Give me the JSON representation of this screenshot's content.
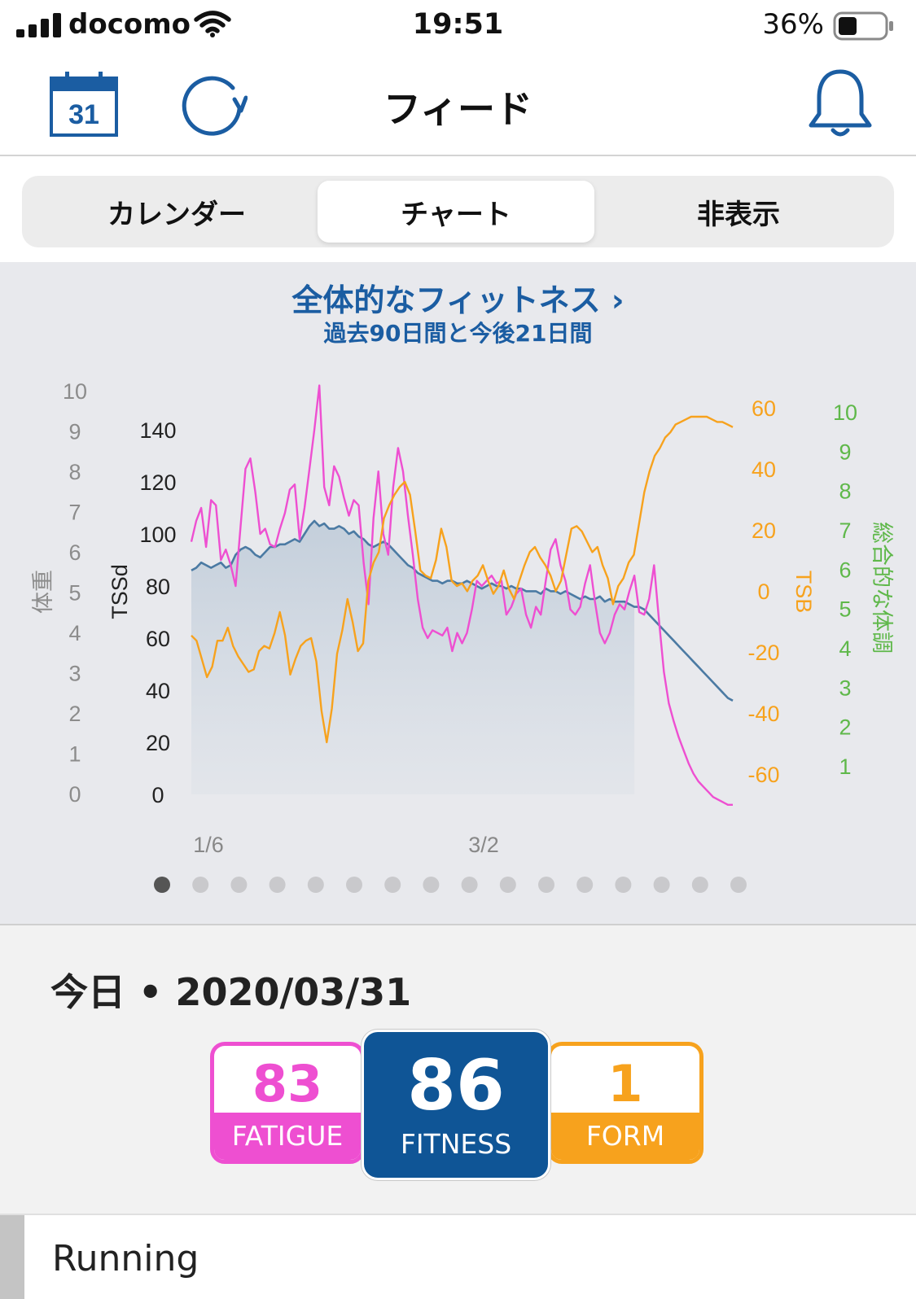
{
  "status_bar": {
    "carrier": "docomo",
    "time": "19:51",
    "battery": "36%"
  },
  "nav": {
    "calendar_day": "31",
    "title": "フィード"
  },
  "tabs": [
    {
      "label": "カレンダー"
    },
    {
      "label": "チャート"
    },
    {
      "label": "非表示"
    }
  ],
  "chart": {
    "title": "全体的なフィットネス ›",
    "subtitle": "過去90日間と今後21日間"
  },
  "chart_data": {
    "type": "line",
    "x_tick_labels": [
      "1/6",
      "3/2"
    ],
    "axes": {
      "weight": {
        "label": "体重",
        "ticks": [
          0,
          1,
          2,
          3,
          4,
          5,
          6,
          7,
          8,
          9,
          10
        ],
        "color": "#8c8c8c"
      },
      "tss": {
        "label": "TSSd",
        "ticks": [
          0,
          20,
          40,
          60,
          80,
          100,
          120,
          140
        ],
        "color": "#222222"
      },
      "tsb": {
        "label": "TSB",
        "ticks": [
          -60,
          -40,
          -20,
          0,
          20,
          40,
          60
        ],
        "color": "#f7a21d"
      },
      "overall": {
        "label": "総合的な体調",
        "ticks": [
          1,
          2,
          3,
          4,
          5,
          6,
          7,
          8,
          9,
          10
        ],
        "color": "#5fb84a"
      }
    },
    "series": [
      {
        "color": "#4b7aa3",
        "axis": "tss",
        "values": [
          86,
          87,
          89,
          88,
          87,
          88,
          89,
          87,
          88,
          92,
          94,
          95,
          94,
          92,
          91,
          93,
          95,
          95,
          96,
          96,
          97,
          98,
          97,
          100,
          103,
          105,
          103,
          104,
          102,
          102,
          103,
          102,
          100,
          101,
          99,
          98,
          96,
          95,
          96,
          97,
          96,
          94,
          92,
          90,
          88,
          87,
          85,
          84,
          83,
          82,
          82,
          81,
          82,
          82,
          81,
          81,
          82,
          81,
          80,
          79,
          80,
          81,
          80,
          80,
          79,
          80,
          79,
          79,
          78,
          78,
          78,
          77,
          79,
          78,
          78,
          77,
          78,
          77,
          76,
          75,
          76,
          75,
          75,
          76,
          74,
          75,
          74,
          74,
          74,
          73,
          72,
          72,
          71,
          69,
          67,
          65,
          63,
          61,
          59,
          57,
          55,
          53,
          51,
          49,
          47,
          45,
          43,
          41,
          39,
          37,
          36
        ]
      },
      {
        "color": "#ee4fd1",
        "axis": "tss",
        "values": [
          97,
          105,
          110,
          95,
          113,
          111,
          90,
          94,
          88,
          80,
          103,
          125,
          129,
          116,
          100,
          102,
          96,
          95,
          102,
          108,
          117,
          119,
          98,
          110,
          125,
          140,
          157,
          118,
          111,
          126,
          122,
          114,
          107,
          113,
          111,
          89,
          73,
          106,
          124,
          100,
          92,
          118,
          133,
          124,
          107,
          92,
          75,
          64,
          60,
          63,
          62,
          61,
          64,
          55,
          62,
          58,
          62,
          71,
          82,
          80,
          82,
          84,
          81,
          82,
          69,
          72,
          77,
          79,
          69,
          64,
          72,
          69,
          82,
          94,
          98,
          88,
          82,
          71,
          69,
          72,
          81,
          88,
          74,
          62,
          58,
          62,
          69,
          73,
          71,
          78,
          84,
          70,
          69,
          75,
          88,
          67,
          47,
          35,
          28,
          22,
          17,
          12,
          8,
          5,
          3,
          1,
          -1,
          -2,
          -3,
          -4,
          -4
        ]
      },
      {
        "color": "#f7a21d",
        "axis": "tss",
        "values": [
          61,
          59,
          52,
          45,
          49,
          59,
          59,
          64,
          57,
          53,
          50,
          47,
          48,
          55,
          57,
          56,
          62,
          70,
          61,
          46,
          52,
          57,
          59,
          60,
          51,
          32,
          20,
          33,
          54,
          63,
          75,
          66,
          55,
          58,
          82,
          89,
          93,
          106,
          111,
          115,
          118,
          120,
          115,
          101,
          86,
          84,
          83,
          90,
          102,
          95,
          82,
          80,
          81,
          78,
          82,
          84,
          88,
          82,
          77,
          80,
          86,
          79,
          75,
          82,
          88,
          93,
          95,
          91,
          88,
          84,
          78,
          82,
          92,
          102,
          103,
          101,
          97,
          93,
          95,
          88,
          83,
          73,
          80,
          83,
          89,
          92,
          104,
          116,
          124,
          130,
          133,
          137,
          139,
          142,
          143,
          144,
          145,
          145,
          145,
          145,
          144,
          143,
          143,
          142,
          141
        ]
      }
    ]
  },
  "pager": {
    "dot_count": 16,
    "active_index": 0
  },
  "today": {
    "label": "今日 • 2020/03/31"
  },
  "metrics": {
    "fatigue": {
      "value": "83",
      "label": "FATIGUE"
    },
    "fitness": {
      "value": "86",
      "label": "FITNESS"
    },
    "form": {
      "value": "1",
      "label": "FORM"
    }
  },
  "feed": {
    "item_label": "Running"
  }
}
